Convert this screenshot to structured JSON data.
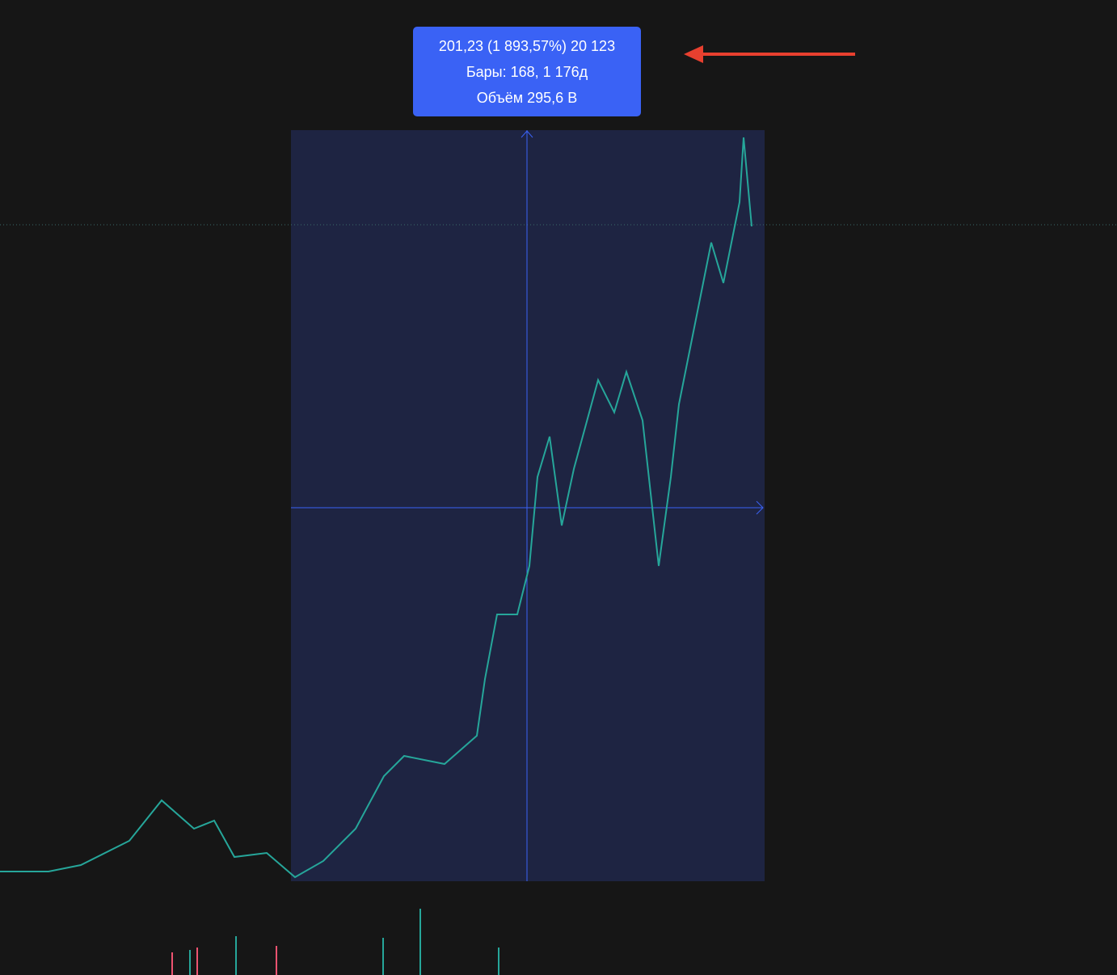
{
  "measure_tooltip": {
    "line1": "201,23 (1 893,57%) 20 123",
    "line2": "Бары: 168, 1 176д",
    "line3": "Объём 295,6 B"
  }
}
